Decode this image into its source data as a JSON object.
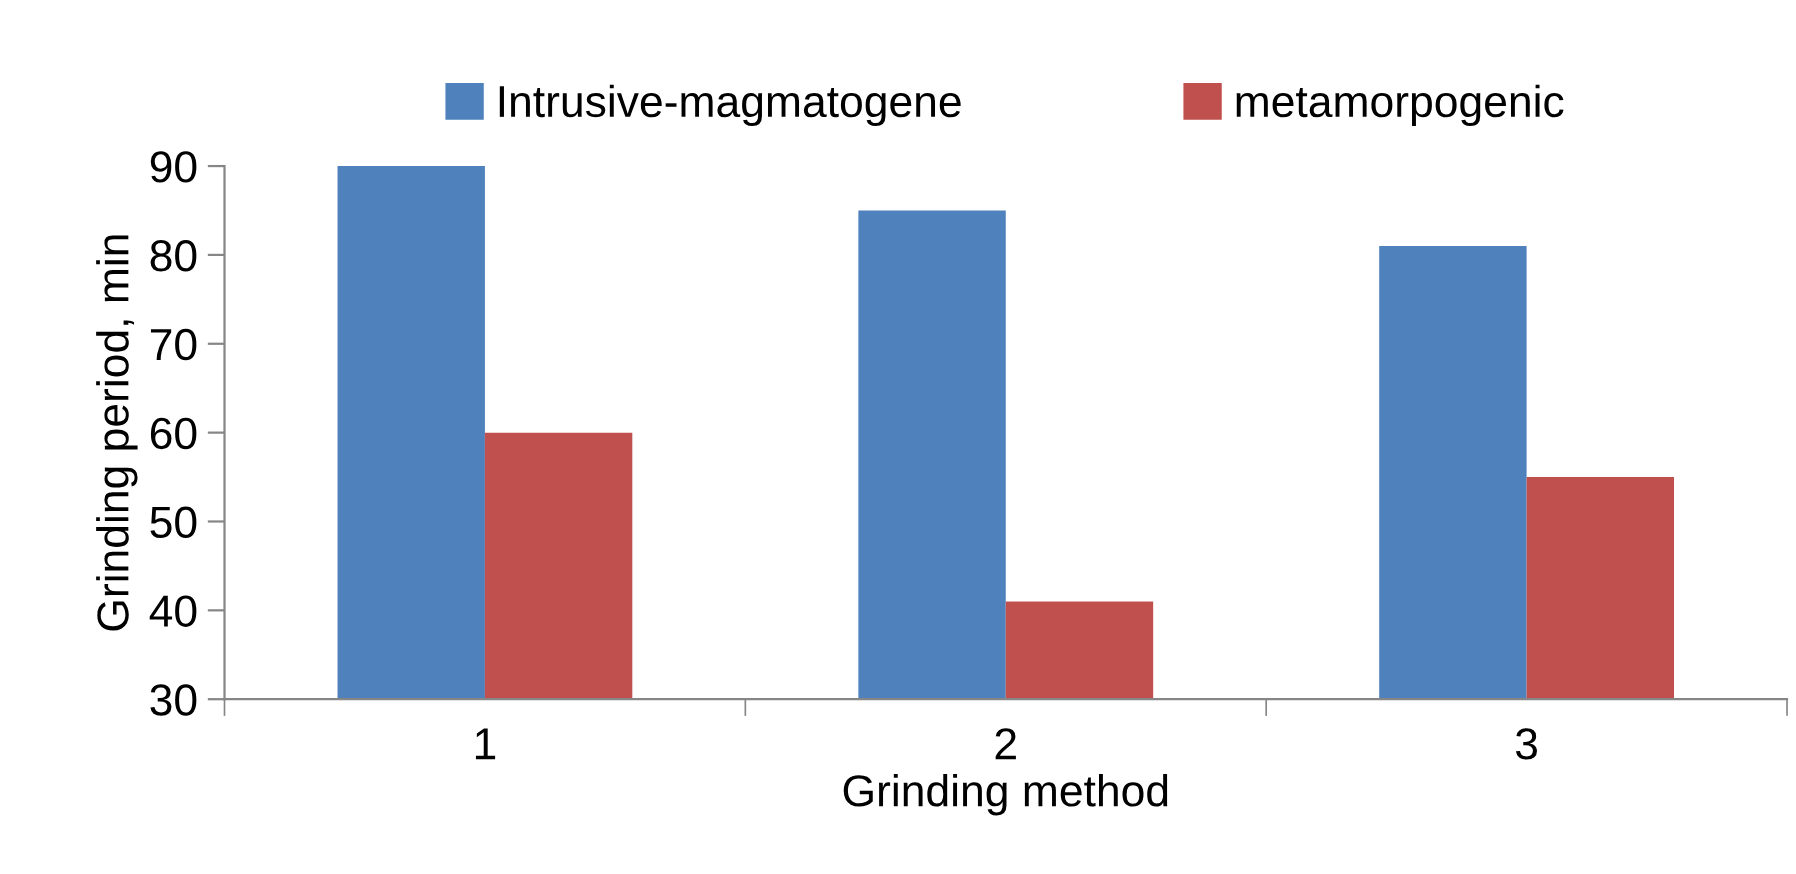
{
  "chart_data": {
    "type": "bar",
    "xlabel": "Grinding method",
    "ylabel": "Grinding period, min",
    "categories": [
      "1",
      "2",
      "3"
    ],
    "series": [
      {
        "name": "Intrusive-magmatogene",
        "color": "#4f81bd",
        "values": [
          90,
          85,
          81
        ]
      },
      {
        "name": "metamorpogenic",
        "color": "#c0504d",
        "values": [
          60,
          41,
          55
        ]
      }
    ],
    "ylim": [
      30,
      90
    ],
    "yticks": [
      30,
      40,
      50,
      60,
      70,
      80,
      90
    ],
    "grid": false,
    "legend": "top"
  }
}
